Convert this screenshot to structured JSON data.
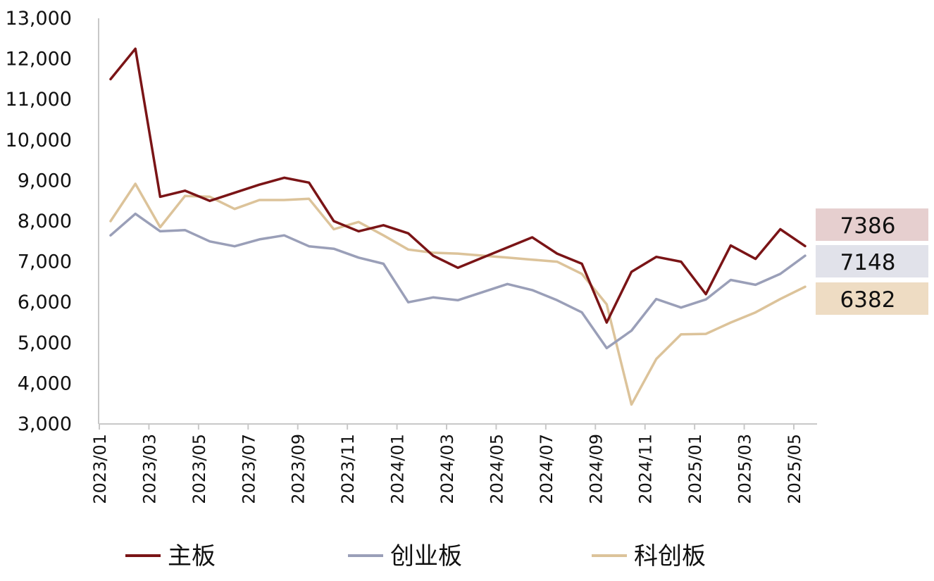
{
  "chart_data": {
    "type": "line",
    "ylim": [
      3000,
      13000
    ],
    "yticks": [
      "3,000",
      "4,000",
      "5,000",
      "6,000",
      "7,000",
      "8,000",
      "9,000",
      "10,000",
      "11,000",
      "12,000",
      "13,000"
    ],
    "yticks_values": [
      3000,
      4000,
      5000,
      6000,
      7000,
      8000,
      9000,
      10000,
      11000,
      12000,
      13000
    ],
    "x": [
      "2023/01",
      "2023/02",
      "2023/03",
      "2023/04",
      "2023/05",
      "2023/06",
      "2023/07",
      "2023/08",
      "2023/09",
      "2023/10",
      "2023/11",
      "2023/12",
      "2024/01",
      "2024/02",
      "2024/03",
      "2024/04",
      "2024/05",
      "2024/06",
      "2024/07",
      "2024/08",
      "2024/09",
      "2024/10",
      "2024/11",
      "2024/12",
      "2025/01",
      "2025/02",
      "2025/03",
      "2025/04",
      "2025/05"
    ],
    "xticks": [
      "2023/01",
      "2023/03",
      "2023/05",
      "2023/07",
      "2023/09",
      "2023/11",
      "2024/01",
      "2024/03",
      "2024/05",
      "2024/07",
      "2024/09",
      "2024/11",
      "2025/01",
      "2025/03",
      "2025/05"
    ],
    "grid": false,
    "legend_position": "bottom",
    "series": [
      {
        "name": "主板",
        "color": "#7a1416",
        "end_label": "7386",
        "end_label_bg": "#e6cfcf",
        "values": [
          11500,
          12250,
          8600,
          8750,
          8500,
          8700,
          8900,
          9070,
          8950,
          8000,
          7750,
          7900,
          7700,
          7150,
          6850,
          7100,
          7350,
          7600,
          7200,
          6950,
          5500,
          6750,
          7120,
          7000,
          6200,
          7400,
          7070,
          7800,
          7386
        ]
      },
      {
        "name": "创业板",
        "color": "#9a9fb8",
        "end_label": "7148",
        "end_label_bg": "#e1e2ea",
        "values": [
          7650,
          8180,
          7750,
          7780,
          7500,
          7380,
          7550,
          7650,
          7380,
          7320,
          7100,
          6950,
          6000,
          6120,
          6050,
          6250,
          6450,
          6300,
          6050,
          5750,
          4870,
          5300,
          6080,
          5870,
          6070,
          6550,
          6430,
          6700,
          7148
        ]
      },
      {
        "name": "科创板",
        "color": "#dcc39a",
        "end_label": "6382",
        "end_label_bg": "#eedcc3",
        "values": [
          8000,
          8920,
          7850,
          8620,
          8600,
          8300,
          8520,
          8520,
          8550,
          7800,
          7980,
          7650,
          7300,
          7220,
          7200,
          7150,
          7100,
          7050,
          7000,
          6700,
          5950,
          3480,
          4600,
          5210,
          5220,
          5500,
          5750,
          6080,
          6382
        ]
      }
    ]
  }
}
